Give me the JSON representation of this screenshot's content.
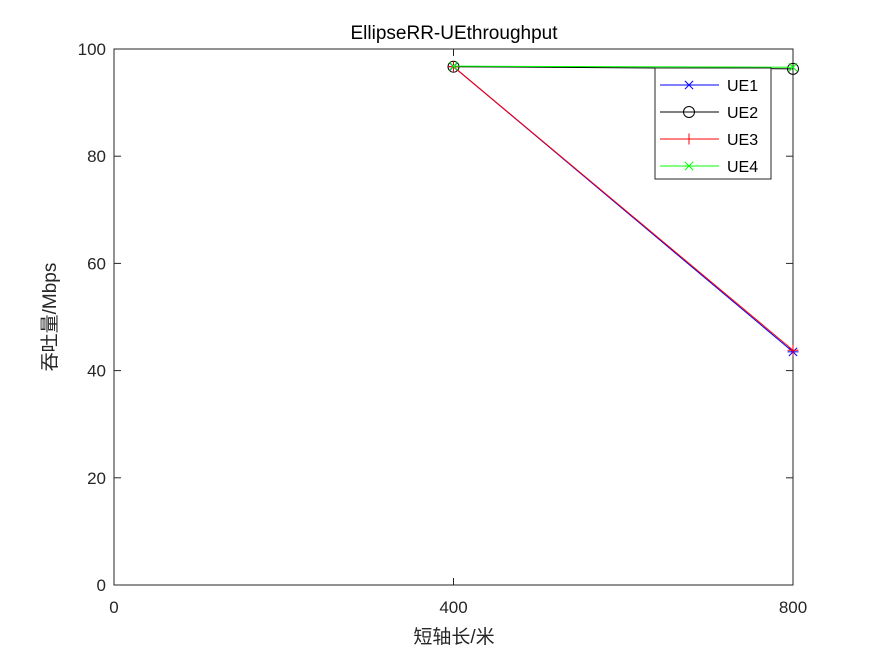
{
  "chart_data": {
    "type": "line",
    "title": "EllipseRR-UEthroughput",
    "xlabel": "短轴长/米",
    "ylabel": "吞吐量/Mbps",
    "x": [
      400,
      800
    ],
    "xlim": [
      0,
      800
    ],
    "ylim": [
      0,
      100
    ],
    "xticks": [
      0,
      400,
      800
    ],
    "yticks": [
      0,
      20,
      40,
      60,
      80,
      100
    ],
    "xtick_labels": [
      "0",
      "400",
      "800"
    ],
    "ytick_labels": [
      "0",
      "20",
      "40",
      "60",
      "80",
      "100"
    ],
    "grid": false,
    "legend_position": "top-right",
    "series": [
      {
        "name": "UE1",
        "values": [
          96.7,
          43.5
        ],
        "color": "#0000ff",
        "marker": "asterisk"
      },
      {
        "name": "UE2",
        "values": [
          96.7,
          96.3
        ],
        "color": "#000000",
        "marker": "circle"
      },
      {
        "name": "UE3",
        "values": [
          96.7,
          43.8
        ],
        "color": "#ff0000",
        "marker": "plus"
      },
      {
        "name": "UE4",
        "values": [
          96.8,
          96.6
        ],
        "color": "#00ff00",
        "marker": "x"
      }
    ]
  }
}
